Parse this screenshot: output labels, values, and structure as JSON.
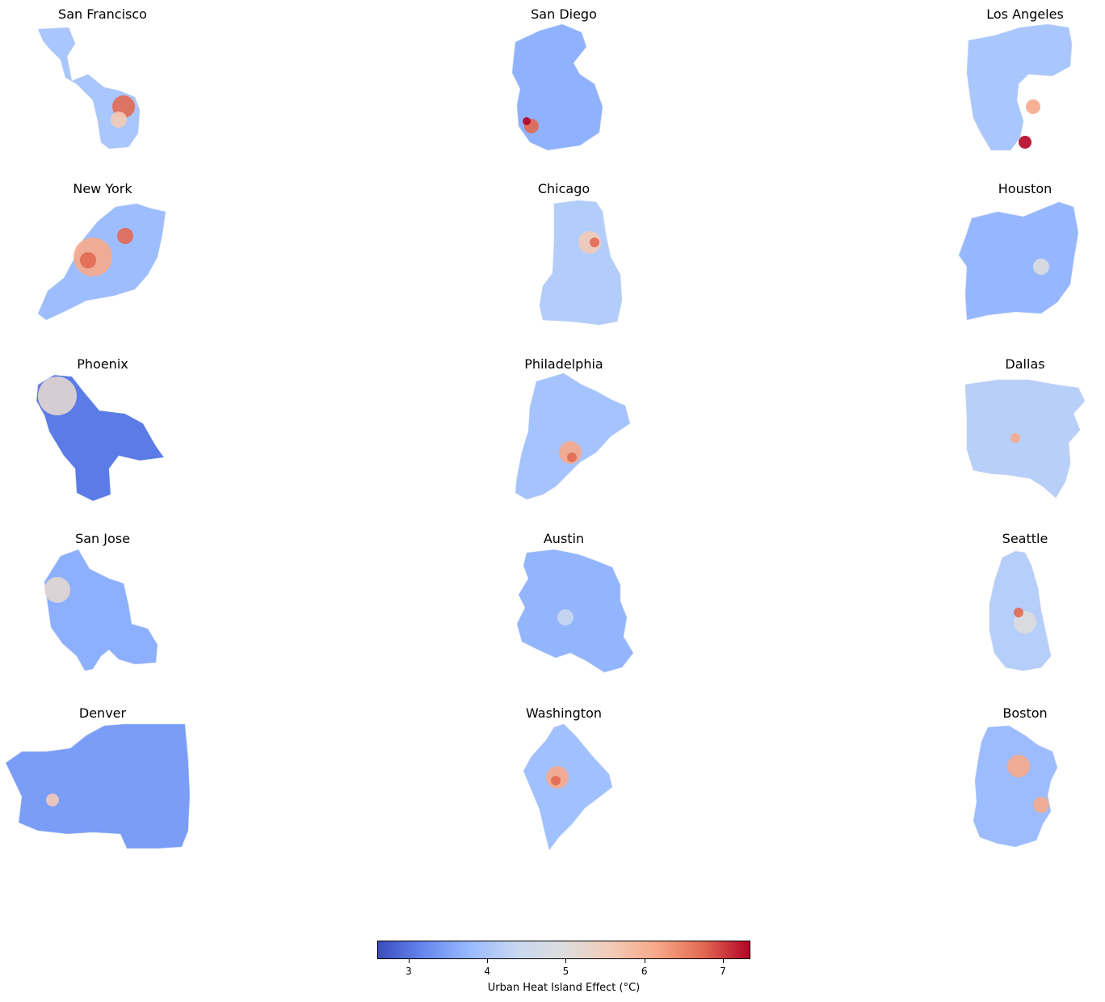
{
  "maps": [
    {
      "city": "San Francisco"
    },
    {
      "city": "San Diego"
    },
    {
      "city": "Los Angeles"
    },
    {
      "city": "New York"
    },
    {
      "city": "Chicago"
    },
    {
      "city": "Houston"
    },
    {
      "city": "Phoenix"
    },
    {
      "city": "Philadelphia"
    },
    {
      "city": "Dallas"
    },
    {
      "city": "San Jose"
    },
    {
      "city": "Austin"
    },
    {
      "city": "Seattle"
    },
    {
      "city": "Denver"
    },
    {
      "city": "Washington"
    },
    {
      "city": "Boston"
    }
  ],
  "colorbar": {
    "label": "Urban Heat Island Effect (°C)",
    "colormap": "coolwarm",
    "range": [
      2.6,
      7.35
    ],
    "ticks": [
      "3",
      "4",
      "5",
      "6",
      "7"
    ],
    "colors": [
      "#3b4cc0",
      "#6788ee",
      "#9abbff",
      "#c9d7f0",
      "#dddddd",
      "#f2cbb7",
      "#f7a889",
      "#e26952",
      "#b40426"
    ]
  }
}
